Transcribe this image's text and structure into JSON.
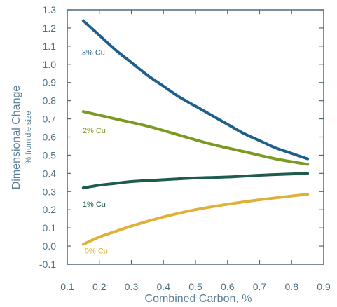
{
  "chart_data": {
    "type": "line",
    "xlabel": "Combined Carbon, %",
    "ylabel": "Dimensional Change",
    "ylabel_sub": "% from die size",
    "xlim": [
      0.1,
      0.9
    ],
    "ylim": [
      -0.1,
      1.3
    ],
    "x_ticks": [
      "0.1",
      "0.2",
      "0.3",
      "0.4",
      "0.5",
      "0.6",
      "0.7",
      "0.8",
      "0.9"
    ],
    "y_ticks": [
      "-0.1",
      "0.0",
      "0.1",
      "0.2",
      "0.3",
      "0.4",
      "0.5",
      "0.6",
      "0.7",
      "0.8",
      "0.9",
      "1.0",
      "1.1",
      "1.2",
      "1.3"
    ],
    "grid": false,
    "series": [
      {
        "name": "3% Cu",
        "color": "#1f5f8b",
        "x": [
          0.15,
          0.2,
          0.25,
          0.3,
          0.35,
          0.4,
          0.45,
          0.5,
          0.55,
          0.6,
          0.65,
          0.7,
          0.75,
          0.8,
          0.85
        ],
        "y": [
          1.24,
          1.16,
          1.08,
          1.01,
          0.94,
          0.88,
          0.82,
          0.77,
          0.72,
          0.67,
          0.62,
          0.58,
          0.54,
          0.51,
          0.48
        ]
      },
      {
        "name": "2% Cu",
        "color": "#7a9a22",
        "x": [
          0.15,
          0.25,
          0.35,
          0.45,
          0.55,
          0.65,
          0.75,
          0.85
        ],
        "y": [
          0.74,
          0.7,
          0.66,
          0.61,
          0.56,
          0.52,
          0.48,
          0.45
        ]
      },
      {
        "name": "1% Cu",
        "color": "#1d5b4e",
        "x": [
          0.15,
          0.2,
          0.25,
          0.3,
          0.4,
          0.5,
          0.6,
          0.7,
          0.85
        ],
        "y": [
          0.32,
          0.335,
          0.345,
          0.355,
          0.365,
          0.375,
          0.38,
          0.39,
          0.4
        ]
      },
      {
        "name": "0% Cu",
        "color": "#e0b13a",
        "x": [
          0.15,
          0.2,
          0.25,
          0.3,
          0.4,
          0.5,
          0.6,
          0.7,
          0.85
        ],
        "y": [
          0.01,
          0.05,
          0.08,
          0.11,
          0.16,
          0.2,
          0.23,
          0.255,
          0.285
        ]
      }
    ]
  }
}
